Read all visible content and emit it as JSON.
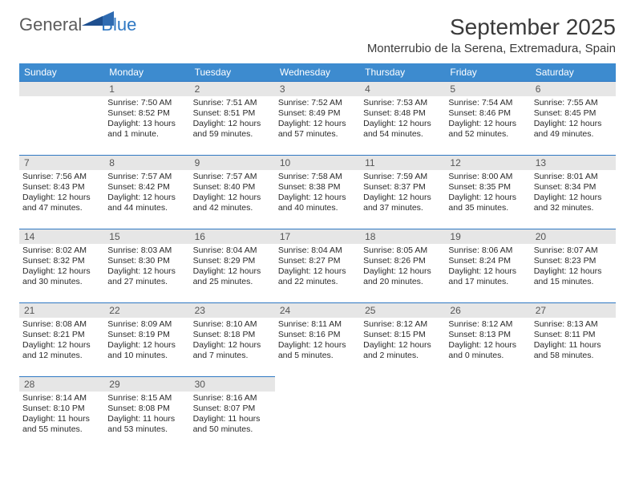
{
  "brand": {
    "name_part1": "General",
    "name_part2": "Blue"
  },
  "title": {
    "month": "September 2025",
    "location": "Monterrubio de la Serena, Extremadura, Spain"
  },
  "colors": {
    "header_bg": "#3d8bcf",
    "accent": "#2f78c3",
    "daynum_bg": "#e6e6e6",
    "text": "#2a2a2a"
  },
  "day_headers": [
    "Sunday",
    "Monday",
    "Tuesday",
    "Wednesday",
    "Thursday",
    "Friday",
    "Saturday"
  ],
  "weeks": [
    [
      {
        "day": "",
        "sunrise": "",
        "sunset": "",
        "daylight": ""
      },
      {
        "day": "1",
        "sunrise": "Sunrise: 7:50 AM",
        "sunset": "Sunset: 8:52 PM",
        "daylight": "Daylight: 13 hours and 1 minute."
      },
      {
        "day": "2",
        "sunrise": "Sunrise: 7:51 AM",
        "sunset": "Sunset: 8:51 PM",
        "daylight": "Daylight: 12 hours and 59 minutes."
      },
      {
        "day": "3",
        "sunrise": "Sunrise: 7:52 AM",
        "sunset": "Sunset: 8:49 PM",
        "daylight": "Daylight: 12 hours and 57 minutes."
      },
      {
        "day": "4",
        "sunrise": "Sunrise: 7:53 AM",
        "sunset": "Sunset: 8:48 PM",
        "daylight": "Daylight: 12 hours and 54 minutes."
      },
      {
        "day": "5",
        "sunrise": "Sunrise: 7:54 AM",
        "sunset": "Sunset: 8:46 PM",
        "daylight": "Daylight: 12 hours and 52 minutes."
      },
      {
        "day": "6",
        "sunrise": "Sunrise: 7:55 AM",
        "sunset": "Sunset: 8:45 PM",
        "daylight": "Daylight: 12 hours and 49 minutes."
      }
    ],
    [
      {
        "day": "7",
        "sunrise": "Sunrise: 7:56 AM",
        "sunset": "Sunset: 8:43 PM",
        "daylight": "Daylight: 12 hours and 47 minutes."
      },
      {
        "day": "8",
        "sunrise": "Sunrise: 7:57 AM",
        "sunset": "Sunset: 8:42 PM",
        "daylight": "Daylight: 12 hours and 44 minutes."
      },
      {
        "day": "9",
        "sunrise": "Sunrise: 7:57 AM",
        "sunset": "Sunset: 8:40 PM",
        "daylight": "Daylight: 12 hours and 42 minutes."
      },
      {
        "day": "10",
        "sunrise": "Sunrise: 7:58 AM",
        "sunset": "Sunset: 8:38 PM",
        "daylight": "Daylight: 12 hours and 40 minutes."
      },
      {
        "day": "11",
        "sunrise": "Sunrise: 7:59 AM",
        "sunset": "Sunset: 8:37 PM",
        "daylight": "Daylight: 12 hours and 37 minutes."
      },
      {
        "day": "12",
        "sunrise": "Sunrise: 8:00 AM",
        "sunset": "Sunset: 8:35 PM",
        "daylight": "Daylight: 12 hours and 35 minutes."
      },
      {
        "day": "13",
        "sunrise": "Sunrise: 8:01 AM",
        "sunset": "Sunset: 8:34 PM",
        "daylight": "Daylight: 12 hours and 32 minutes."
      }
    ],
    [
      {
        "day": "14",
        "sunrise": "Sunrise: 8:02 AM",
        "sunset": "Sunset: 8:32 PM",
        "daylight": "Daylight: 12 hours and 30 minutes."
      },
      {
        "day": "15",
        "sunrise": "Sunrise: 8:03 AM",
        "sunset": "Sunset: 8:30 PM",
        "daylight": "Daylight: 12 hours and 27 minutes."
      },
      {
        "day": "16",
        "sunrise": "Sunrise: 8:04 AM",
        "sunset": "Sunset: 8:29 PM",
        "daylight": "Daylight: 12 hours and 25 minutes."
      },
      {
        "day": "17",
        "sunrise": "Sunrise: 8:04 AM",
        "sunset": "Sunset: 8:27 PM",
        "daylight": "Daylight: 12 hours and 22 minutes."
      },
      {
        "day": "18",
        "sunrise": "Sunrise: 8:05 AM",
        "sunset": "Sunset: 8:26 PM",
        "daylight": "Daylight: 12 hours and 20 minutes."
      },
      {
        "day": "19",
        "sunrise": "Sunrise: 8:06 AM",
        "sunset": "Sunset: 8:24 PM",
        "daylight": "Daylight: 12 hours and 17 minutes."
      },
      {
        "day": "20",
        "sunrise": "Sunrise: 8:07 AM",
        "sunset": "Sunset: 8:23 PM",
        "daylight": "Daylight: 12 hours and 15 minutes."
      }
    ],
    [
      {
        "day": "21",
        "sunrise": "Sunrise: 8:08 AM",
        "sunset": "Sunset: 8:21 PM",
        "daylight": "Daylight: 12 hours and 12 minutes."
      },
      {
        "day": "22",
        "sunrise": "Sunrise: 8:09 AM",
        "sunset": "Sunset: 8:19 PM",
        "daylight": "Daylight: 12 hours and 10 minutes."
      },
      {
        "day": "23",
        "sunrise": "Sunrise: 8:10 AM",
        "sunset": "Sunset: 8:18 PM",
        "daylight": "Daylight: 12 hours and 7 minutes."
      },
      {
        "day": "24",
        "sunrise": "Sunrise: 8:11 AM",
        "sunset": "Sunset: 8:16 PM",
        "daylight": "Daylight: 12 hours and 5 minutes."
      },
      {
        "day": "25",
        "sunrise": "Sunrise: 8:12 AM",
        "sunset": "Sunset: 8:15 PM",
        "daylight": "Daylight: 12 hours and 2 minutes."
      },
      {
        "day": "26",
        "sunrise": "Sunrise: 8:12 AM",
        "sunset": "Sunset: 8:13 PM",
        "daylight": "Daylight: 12 hours and 0 minutes."
      },
      {
        "day": "27",
        "sunrise": "Sunrise: 8:13 AM",
        "sunset": "Sunset: 8:11 PM",
        "daylight": "Daylight: 11 hours and 58 minutes."
      }
    ],
    [
      {
        "day": "28",
        "sunrise": "Sunrise: 8:14 AM",
        "sunset": "Sunset: 8:10 PM",
        "daylight": "Daylight: 11 hours and 55 minutes."
      },
      {
        "day": "29",
        "sunrise": "Sunrise: 8:15 AM",
        "sunset": "Sunset: 8:08 PM",
        "daylight": "Daylight: 11 hours and 53 minutes."
      },
      {
        "day": "30",
        "sunrise": "Sunrise: 8:16 AM",
        "sunset": "Sunset: 8:07 PM",
        "daylight": "Daylight: 11 hours and 50 minutes."
      },
      {
        "day": "",
        "sunrise": "",
        "sunset": "",
        "daylight": ""
      },
      {
        "day": "",
        "sunrise": "",
        "sunset": "",
        "daylight": ""
      },
      {
        "day": "",
        "sunrise": "",
        "sunset": "",
        "daylight": ""
      },
      {
        "day": "",
        "sunrise": "",
        "sunset": "",
        "daylight": ""
      }
    ]
  ]
}
